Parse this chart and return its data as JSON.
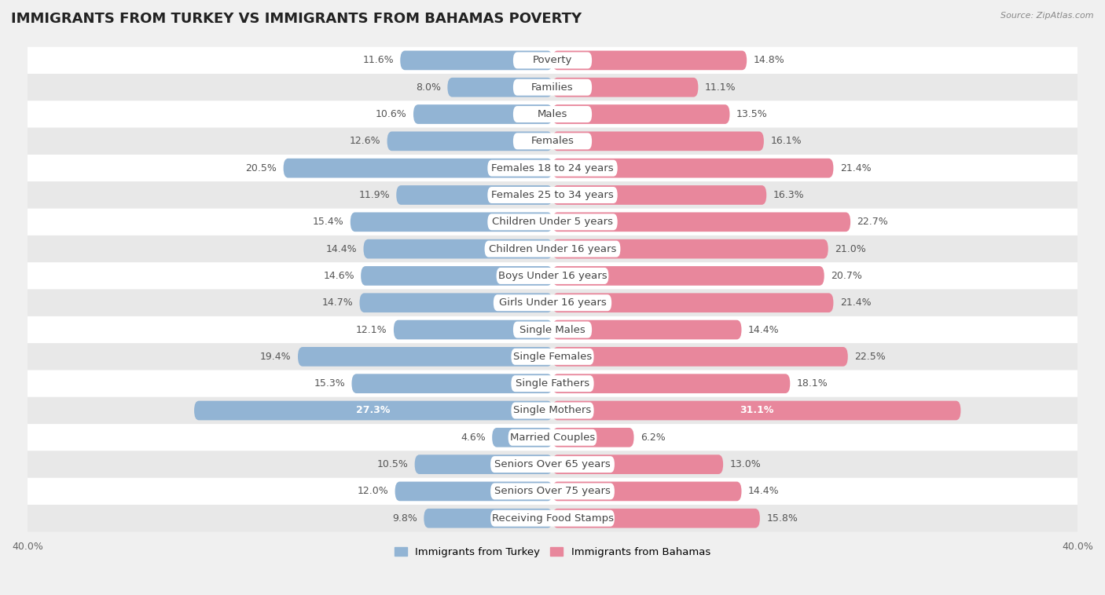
{
  "title": "IMMIGRANTS FROM TURKEY VS IMMIGRANTS FROM BAHAMAS POVERTY",
  "source": "Source: ZipAtlas.com",
  "categories": [
    "Poverty",
    "Families",
    "Males",
    "Females",
    "Females 18 to 24 years",
    "Females 25 to 34 years",
    "Children Under 5 years",
    "Children Under 16 years",
    "Boys Under 16 years",
    "Girls Under 16 years",
    "Single Males",
    "Single Females",
    "Single Fathers",
    "Single Mothers",
    "Married Couples",
    "Seniors Over 65 years",
    "Seniors Over 75 years",
    "Receiving Food Stamps"
  ],
  "turkey_values": [
    11.6,
    8.0,
    10.6,
    12.6,
    20.5,
    11.9,
    15.4,
    14.4,
    14.6,
    14.7,
    12.1,
    19.4,
    15.3,
    27.3,
    4.6,
    10.5,
    12.0,
    9.8
  ],
  "bahamas_values": [
    14.8,
    11.1,
    13.5,
    16.1,
    21.4,
    16.3,
    22.7,
    21.0,
    20.7,
    21.4,
    14.4,
    22.5,
    18.1,
    31.1,
    6.2,
    13.0,
    14.4,
    15.8
  ],
  "turkey_color": "#92b4d4",
  "bahamas_color": "#e8879c",
  "axis_limit": 40.0,
  "background_color": "#f0f0f0",
  "row_color_even": "#ffffff",
  "row_color_odd": "#e8e8e8",
  "title_fontsize": 13,
  "label_fontsize": 9.5,
  "value_fontsize": 9,
  "legend_label_turkey": "Immigrants from Turkey",
  "legend_label_bahamas": "Immigrants from Bahamas",
  "single_mothers_index": 13
}
